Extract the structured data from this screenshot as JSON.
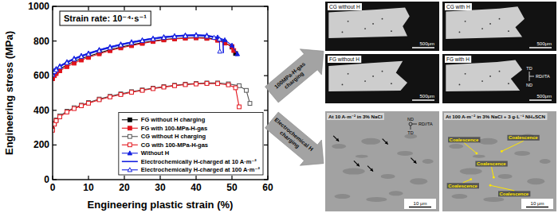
{
  "chart_data": {
    "type": "line",
    "annotation": "Strain rate: 10⁻⁴·s⁻¹",
    "x_label": "Engineering plastic strain (%)",
    "y_label": "Engineering stress (MPa)",
    "xlim": [
      0,
      60
    ],
    "xticks": [
      0,
      10,
      20,
      30,
      40,
      50,
      60
    ],
    "ylim": [
      0,
      1000
    ],
    "yticks": [
      0,
      200,
      400,
      600,
      800,
      1000
    ],
    "grid": false,
    "legend": "lower right",
    "series": [
      {
        "name": "FG without H charging",
        "color": "#000000",
        "marker": "square",
        "line_style": "solid",
        "x": [
          0,
          0.5,
          1,
          2,
          4,
          6,
          8,
          10,
          13,
          16,
          19,
          22,
          25,
          28,
          31,
          34,
          37,
          40,
          43,
          46,
          48,
          50,
          51
        ],
        "values": [
          590,
          610,
          622,
          638,
          662,
          682,
          698,
          712,
          732,
          750,
          765,
          778,
          790,
          800,
          808,
          814,
          818,
          820,
          818,
          808,
          792,
          765,
          728
        ]
      },
      {
        "name": "FG with 100-MPa-H-gas",
        "color": "#e3141c",
        "marker": "square",
        "line_style": "solid",
        "x": [
          0,
          0.5,
          1,
          2,
          4,
          6,
          8,
          10,
          13,
          16,
          19,
          22,
          25,
          28,
          31,
          34,
          37,
          40,
          43,
          46,
          48,
          50,
          50.5
        ],
        "values": [
          582,
          600,
          612,
          628,
          652,
          672,
          690,
          705,
          726,
          744,
          760,
          773,
          786,
          797,
          806,
          812,
          816,
          818,
          815,
          804,
          788,
          768,
          745
        ]
      },
      {
        "name": "CG without H charging",
        "color": "#555555",
        "marker": "open-square",
        "line_style": "solid",
        "x": [
          0,
          0.5,
          1,
          2,
          4,
          6,
          8,
          10,
          13,
          16,
          19,
          22,
          25,
          28,
          31,
          34,
          37,
          40,
          43,
          46,
          49,
          52,
          54,
          55
        ],
        "values": [
          290,
          325,
          345,
          368,
          395,
          415,
          430,
          445,
          465,
          481,
          495,
          508,
          518,
          528,
          537,
          545,
          551,
          555,
          558,
          558,
          553,
          542,
          515,
          440
        ]
      },
      {
        "name": "CG with 100-MPa-H-gas",
        "color": "#e3141c",
        "marker": "open-square",
        "line_style": "solid",
        "x": [
          0,
          0.5,
          1,
          2,
          4,
          6,
          8,
          10,
          13,
          16,
          19,
          22,
          25,
          28,
          31,
          34,
          37,
          40,
          43,
          46,
          49,
          51,
          52
        ],
        "values": [
          285,
          320,
          340,
          362,
          390,
          410,
          426,
          441,
          461,
          477,
          491,
          504,
          515,
          525,
          534,
          542,
          548,
          552,
          555,
          554,
          547,
          530,
          420
        ]
      },
      {
        "name": "Without H",
        "color": "#1420e0",
        "marker": "triangle",
        "line_style": "solid",
        "x": [
          0,
          0.5,
          1,
          2,
          4,
          6,
          8,
          10,
          13,
          16,
          19,
          22,
          25,
          28,
          31,
          34,
          37,
          40,
          43,
          46,
          48,
          50,
          51.5
        ],
        "values": [
          615,
          630,
          640,
          656,
          680,
          700,
          716,
          730,
          750,
          767,
          782,
          795,
          806,
          816,
          824,
          830,
          834,
          836,
          833,
          822,
          806,
          775,
          725
        ]
      },
      {
        "name": "Electrochemically H-charged at 10 A·m⁻²",
        "color": "#1420e0",
        "marker": "none",
        "line_style": "solid",
        "x": [
          0,
          0.5,
          1,
          2,
          4,
          6,
          8,
          10,
          13,
          16,
          19,
          22,
          25,
          28,
          31,
          34,
          37,
          40,
          43,
          46,
          47.5,
          47.6
        ],
        "values": [
          612,
          628,
          638,
          654,
          678,
          698,
          714,
          728,
          748,
          765,
          780,
          793,
          805,
          815,
          823,
          829,
          833,
          835,
          831,
          818,
          805,
          730
        ]
      },
      {
        "name": "Electrochemically H-charged at 100 A·m⁻²",
        "color": "#1420e0",
        "marker": "open-triangle",
        "line_style": "solid",
        "x": [
          0,
          0.5,
          1,
          2,
          4,
          6,
          8,
          10,
          13,
          16,
          19,
          22,
          25,
          28,
          31,
          34,
          37,
          40,
          43,
          45,
          46.5,
          46.6
        ],
        "values": [
          605,
          622,
          633,
          650,
          674,
          694,
          710,
          724,
          744,
          761,
          776,
          789,
          801,
          811,
          819,
          825,
          829,
          831,
          827,
          820,
          810,
          740
        ]
      }
    ]
  },
  "micrographs": {
    "gas_charging": {
      "label": "100MPa-H-gas charging",
      "panels": [
        {
          "title": "CG without H",
          "scale_bar": "500μm"
        },
        {
          "title": "CG with H",
          "scale_bar": "500μm"
        },
        {
          "title": "FG without H",
          "scale_bar": "500μm"
        },
        {
          "title": "FG with H",
          "scale_bar": "500μm",
          "directions": [
            "TD",
            "RD//TA",
            "ND"
          ]
        }
      ]
    },
    "electrochemical_charging": {
      "label": "Electrochemical H charging",
      "panels": [
        {
          "title": "At 10 A·m⁻² in 3% NaCl",
          "scale_bar": "10 μm",
          "directions": [
            "ND",
            "RD//TA",
            "TD"
          ]
        },
        {
          "title": "At 100 A·m⁻² in 3% NaCl + 3 g·L⁻¹ NH₄SCN",
          "scale_bar": "10 μm",
          "annotations": [
            "Coalescence",
            "Coalescence",
            "Coalescence",
            "Coalescence",
            "Coalescence"
          ]
        }
      ]
    }
  }
}
